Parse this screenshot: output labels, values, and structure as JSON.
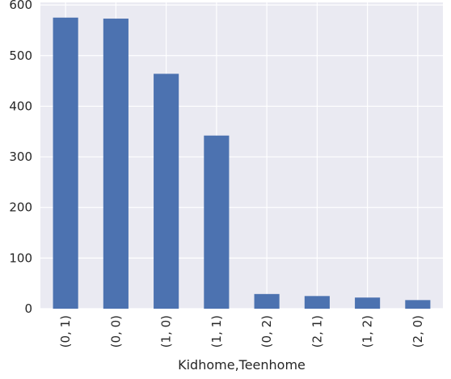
{
  "chart_data": {
    "type": "bar",
    "title": "",
    "xlabel": "Kidhome,Teenhome",
    "ylabel": "",
    "categories": [
      "(0, 1)",
      "(0, 0)",
      "(1, 0)",
      "(1, 1)",
      "(0, 2)",
      "(2, 1)",
      "(1, 2)",
      "(2, 0)"
    ],
    "values": [
      575,
      573,
      464,
      342,
      29,
      25,
      22,
      17
    ],
    "ylim": [
      0,
      605
    ],
    "yticks": [
      0,
      100,
      200,
      300,
      400,
      500,
      600
    ],
    "grid": true,
    "legend": "none",
    "colors": {
      "bar": "#4c72b0",
      "background": "#eaeaf2",
      "grid": "#ffffff",
      "text": "#262626"
    }
  }
}
